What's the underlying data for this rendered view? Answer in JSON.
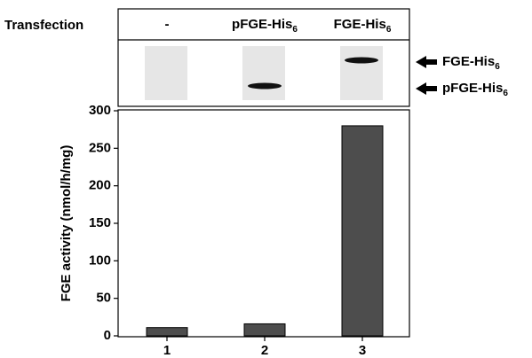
{
  "chart_data": {
    "type": "bar",
    "ylabel": "FGE activity (nmol/h/mg)",
    "categories": [
      "1",
      "2",
      "3"
    ],
    "values": [
      11,
      16,
      280
    ],
    "color": "#4d4d4d",
    "ylim": [
      0,
      300
    ],
    "yticks": [
      0,
      50,
      100,
      150,
      200,
      250,
      300
    ]
  },
  "blot": {
    "row_label": "Transfection",
    "lanes": [
      {
        "label": "-"
      },
      {
        "label": "pFGE-His",
        "sub": "6"
      },
      {
        "label": "FGE-His",
        "sub": "6"
      }
    ],
    "bands": [
      {
        "label": "FGE-His",
        "sub": "6"
      },
      {
        "label": "pFGE-His",
        "sub": "6"
      }
    ]
  }
}
